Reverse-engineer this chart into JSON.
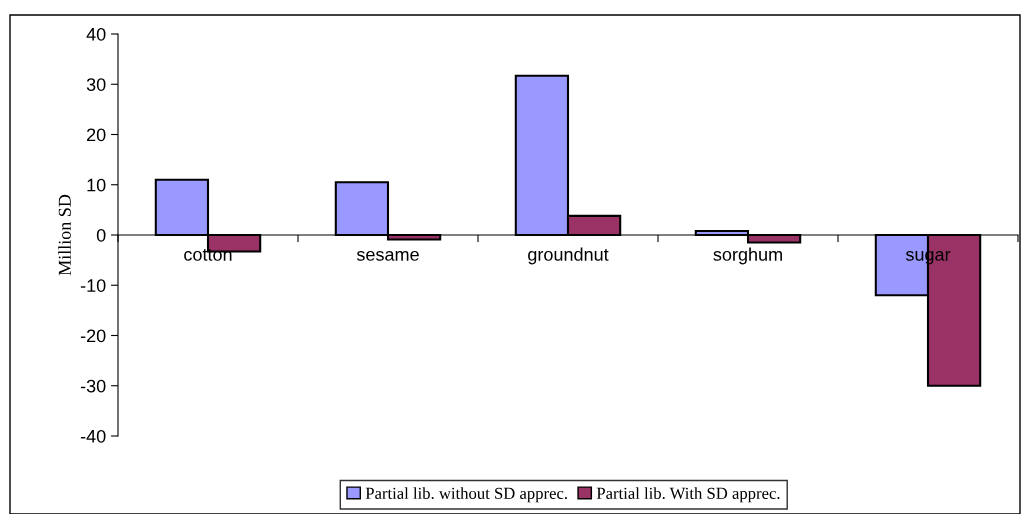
{
  "chart_data": {
    "type": "bar",
    "ylabel": "Million SD",
    "categories": [
      "cotton",
      "sesame",
      "groundnut",
      "sorghum",
      "sugar"
    ],
    "series": [
      {
        "name": "Partial lib. without SD apprec.",
        "color": "#9999ff",
        "values": [
          11.0,
          10.5,
          31.7,
          0.8,
          -12.0
        ]
      },
      {
        "name": "Partial lib. With SD apprec.",
        "color": "#993366",
        "values": [
          -3.3,
          -0.9,
          3.8,
          -1.5,
          -30.0
        ]
      }
    ],
    "ylim": [
      -40,
      40
    ],
    "yticks": [
      -40,
      -30,
      -20,
      -10,
      0,
      10,
      20,
      30,
      40
    ],
    "grid": false,
    "legend": "bottom"
  }
}
